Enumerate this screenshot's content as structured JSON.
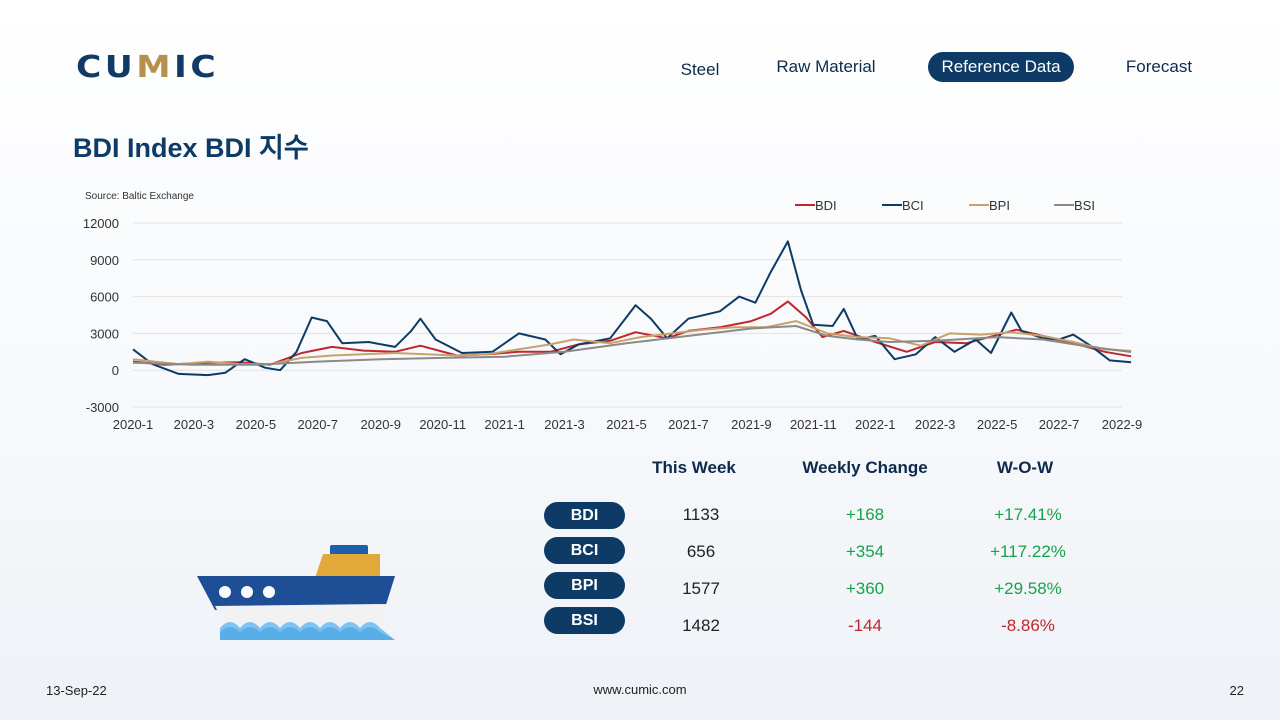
{
  "header": {
    "logo": "CUMIC",
    "nav": [
      {
        "label": "Steel",
        "active": false
      },
      {
        "label": "Raw Material",
        "active": false
      },
      {
        "label": "Reference Data",
        "active": true
      },
      {
        "label": "Forecast",
        "active": false
      }
    ]
  },
  "page_title": "BDI Index BDI 지수",
  "source": "Source:  Baltic Exchange",
  "chart_data": {
    "type": "line",
    "title": "",
    "xlabel": "",
    "ylabel": "",
    "ylim": [
      -3000,
      12000
    ],
    "yticks": [
      "12000",
      "9000",
      "6000",
      "3000",
      "0",
      "-3000"
    ],
    "xticks": [
      "2020-1",
      "2020-3",
      "2020-5",
      "2020-7",
      "2020-9",
      "2020-11",
      "2021-1",
      "2021-3",
      "2021-5",
      "2021-7",
      "2021-9",
      "2021-11",
      "2022-1",
      "2022-3",
      "2022-5",
      "2022-7",
      "2022-9"
    ],
    "legend_position": "top-right",
    "grid": true,
    "series": [
      {
        "name": "BDI",
        "color": "#c0262d",
        "points": [
          [
            "2020-01-01",
            700
          ],
          [
            "2020-02-01",
            450
          ],
          [
            "2020-03-15",
            600
          ],
          [
            "2020-04-15",
            650
          ],
          [
            "2020-05-15",
            450
          ],
          [
            "2020-06-15",
            1400
          ],
          [
            "2020-07-15",
            1900
          ],
          [
            "2020-08-15",
            1600
          ],
          [
            "2020-09-15",
            1500
          ],
          [
            "2020-10-10",
            2000
          ],
          [
            "2020-11-15",
            1200
          ],
          [
            "2020-12-15",
            1300
          ],
          [
            "2021-01-15",
            1500
          ],
          [
            "2021-02-15",
            1500
          ],
          [
            "2021-03-15",
            2100
          ],
          [
            "2021-04-15",
            2400
          ],
          [
            "2021-05-10",
            3100
          ],
          [
            "2021-06-10",
            2600
          ],
          [
            "2021-07-01",
            3200
          ],
          [
            "2021-08-01",
            3500
          ],
          [
            "2021-09-01",
            4000
          ],
          [
            "2021-09-20",
            4600
          ],
          [
            "2021-10-07",
            5600
          ],
          [
            "2021-10-25",
            4300
          ],
          [
            "2021-11-10",
            2700
          ],
          [
            "2021-12-01",
            3200
          ],
          [
            "2022-01-01",
            2300
          ],
          [
            "2022-02-01",
            1500
          ],
          [
            "2022-03-01",
            2300
          ],
          [
            "2022-04-01",
            2200
          ],
          [
            "2022-05-20",
            3300
          ],
          [
            "2022-06-15",
            2800
          ],
          [
            "2022-07-15",
            2200
          ],
          [
            "2022-08-15",
            1500
          ],
          [
            "2022-09-10",
            1133
          ]
        ]
      },
      {
        "name": "BCI",
        "color": "#0d3b66",
        "points": [
          [
            "2020-01-01",
            1700
          ],
          [
            "2020-01-20",
            500
          ],
          [
            "2020-02-15",
            -300
          ],
          [
            "2020-03-15",
            -400
          ],
          [
            "2020-04-01",
            -200
          ],
          [
            "2020-04-20",
            900
          ],
          [
            "2020-05-10",
            200
          ],
          [
            "2020-05-25",
            0
          ],
          [
            "2020-06-10",
            1500
          ],
          [
            "2020-06-25",
            4300
          ],
          [
            "2020-07-10",
            4000
          ],
          [
            "2020-07-25",
            2200
          ],
          [
            "2020-08-20",
            2300
          ],
          [
            "2020-09-15",
            1900
          ],
          [
            "2020-10-01",
            3200
          ],
          [
            "2020-10-10",
            4200
          ],
          [
            "2020-10-25",
            2500
          ],
          [
            "2020-11-20",
            1400
          ],
          [
            "2020-12-20",
            1500
          ],
          [
            "2021-01-15",
            3000
          ],
          [
            "2021-02-10",
            2500
          ],
          [
            "2021-02-25",
            1300
          ],
          [
            "2021-03-15",
            2100
          ],
          [
            "2021-04-15",
            2600
          ],
          [
            "2021-05-10",
            5300
          ],
          [
            "2021-05-25",
            4200
          ],
          [
            "2021-06-10",
            2600
          ],
          [
            "2021-07-01",
            4200
          ],
          [
            "2021-08-01",
            4800
          ],
          [
            "2021-08-20",
            6000
          ],
          [
            "2021-09-05",
            5500
          ],
          [
            "2021-09-20",
            8000
          ],
          [
            "2021-10-07",
            10500
          ],
          [
            "2021-10-20",
            6500
          ],
          [
            "2021-11-01",
            3700
          ],
          [
            "2021-11-20",
            3600
          ],
          [
            "2021-12-01",
            5000
          ],
          [
            "2021-12-15",
            2500
          ],
          [
            "2022-01-01",
            2800
          ],
          [
            "2022-01-20",
            900
          ],
          [
            "2022-02-10",
            1300
          ],
          [
            "2022-03-01",
            2700
          ],
          [
            "2022-03-20",
            1500
          ],
          [
            "2022-04-10",
            2500
          ],
          [
            "2022-04-25",
            1400
          ],
          [
            "2022-05-15",
            4700
          ],
          [
            "2022-05-25",
            3200
          ],
          [
            "2022-06-15",
            2600
          ],
          [
            "2022-07-01",
            2500
          ],
          [
            "2022-07-15",
            2900
          ],
          [
            "2022-08-01",
            2000
          ],
          [
            "2022-08-20",
            800
          ],
          [
            "2022-09-10",
            656
          ]
        ]
      },
      {
        "name": "BPI",
        "color": "#c9a16b",
        "points": [
          [
            "2020-01-01",
            900
          ],
          [
            "2020-02-15",
            500
          ],
          [
            "2020-03-15",
            700
          ],
          [
            "2020-04-15",
            500
          ],
          [
            "2020-05-15",
            500
          ],
          [
            "2020-06-15",
            1000
          ],
          [
            "2020-07-15",
            1200
          ],
          [
            "2020-08-15",
            1300
          ],
          [
            "2020-09-15",
            1400
          ],
          [
            "2020-10-15",
            1300
          ],
          [
            "2020-11-15",
            1200
          ],
          [
            "2020-12-15",
            1300
          ],
          [
            "2021-01-15",
            1700
          ],
          [
            "2021-02-15",
            2100
          ],
          [
            "2021-03-10",
            2500
          ],
          [
            "2021-04-15",
            2200
          ],
          [
            "2021-05-15",
            2700
          ],
          [
            "2021-06-15",
            3000
          ],
          [
            "2021-07-15",
            3300
          ],
          [
            "2021-08-15",
            3500
          ],
          [
            "2021-09-15",
            3500
          ],
          [
            "2021-10-15",
            4000
          ],
          [
            "2021-11-15",
            3000
          ],
          [
            "2021-12-15",
            2700
          ],
          [
            "2022-01-15",
            2600
          ],
          [
            "2022-02-15",
            2000
          ],
          [
            "2022-03-15",
            3000
          ],
          [
            "2022-04-15",
            2900
          ],
          [
            "2022-05-15",
            3100
          ],
          [
            "2022-06-15",
            2800
          ],
          [
            "2022-07-15",
            2300
          ],
          [
            "2022-08-15",
            1700
          ],
          [
            "2022-09-10",
            1577
          ]
        ]
      },
      {
        "name": "BSI",
        "color": "#8a8a8a",
        "points": [
          [
            "2020-01-01",
            600
          ],
          [
            "2020-03-01",
            450
          ],
          [
            "2020-05-01",
            450
          ],
          [
            "2020-07-01",
            700
          ],
          [
            "2020-09-01",
            900
          ],
          [
            "2020-11-01",
            1000
          ],
          [
            "2021-01-01",
            1100
          ],
          [
            "2021-03-01",
            1500
          ],
          [
            "2021-05-01",
            2200
          ],
          [
            "2021-07-01",
            2800
          ],
          [
            "2021-09-01",
            3400
          ],
          [
            "2021-10-15",
            3600
          ],
          [
            "2021-11-15",
            2800
          ],
          [
            "2021-12-15",
            2500
          ],
          [
            "2022-01-15",
            2300
          ],
          [
            "2022-03-01",
            2400
          ],
          [
            "2022-05-01",
            2700
          ],
          [
            "2022-06-15",
            2500
          ],
          [
            "2022-08-01",
            1900
          ],
          [
            "2022-09-10",
            1482
          ]
        ]
      }
    ]
  },
  "table": {
    "headers": [
      "This Week",
      "Weekly Change",
      "W-O-W"
    ],
    "rows": [
      {
        "label": "BDI",
        "this_week": "1133",
        "change": "+168",
        "wow": "+17.41%",
        "dir": "pos"
      },
      {
        "label": "BCI",
        "this_week": "656",
        "change": "+354",
        "wow": "+117.22%",
        "dir": "pos"
      },
      {
        "label": "BPI",
        "this_week": "1577",
        "change": "+360",
        "wow": "+29.58%",
        "dir": "pos"
      },
      {
        "label": "BSI",
        "this_week": "1482",
        "change": "-144",
        "wow": "-8.86%",
        "dir": "neg"
      }
    ]
  },
  "footer": {
    "date": "13-Sep-22",
    "url": "www.cumic.com",
    "page": "22"
  }
}
